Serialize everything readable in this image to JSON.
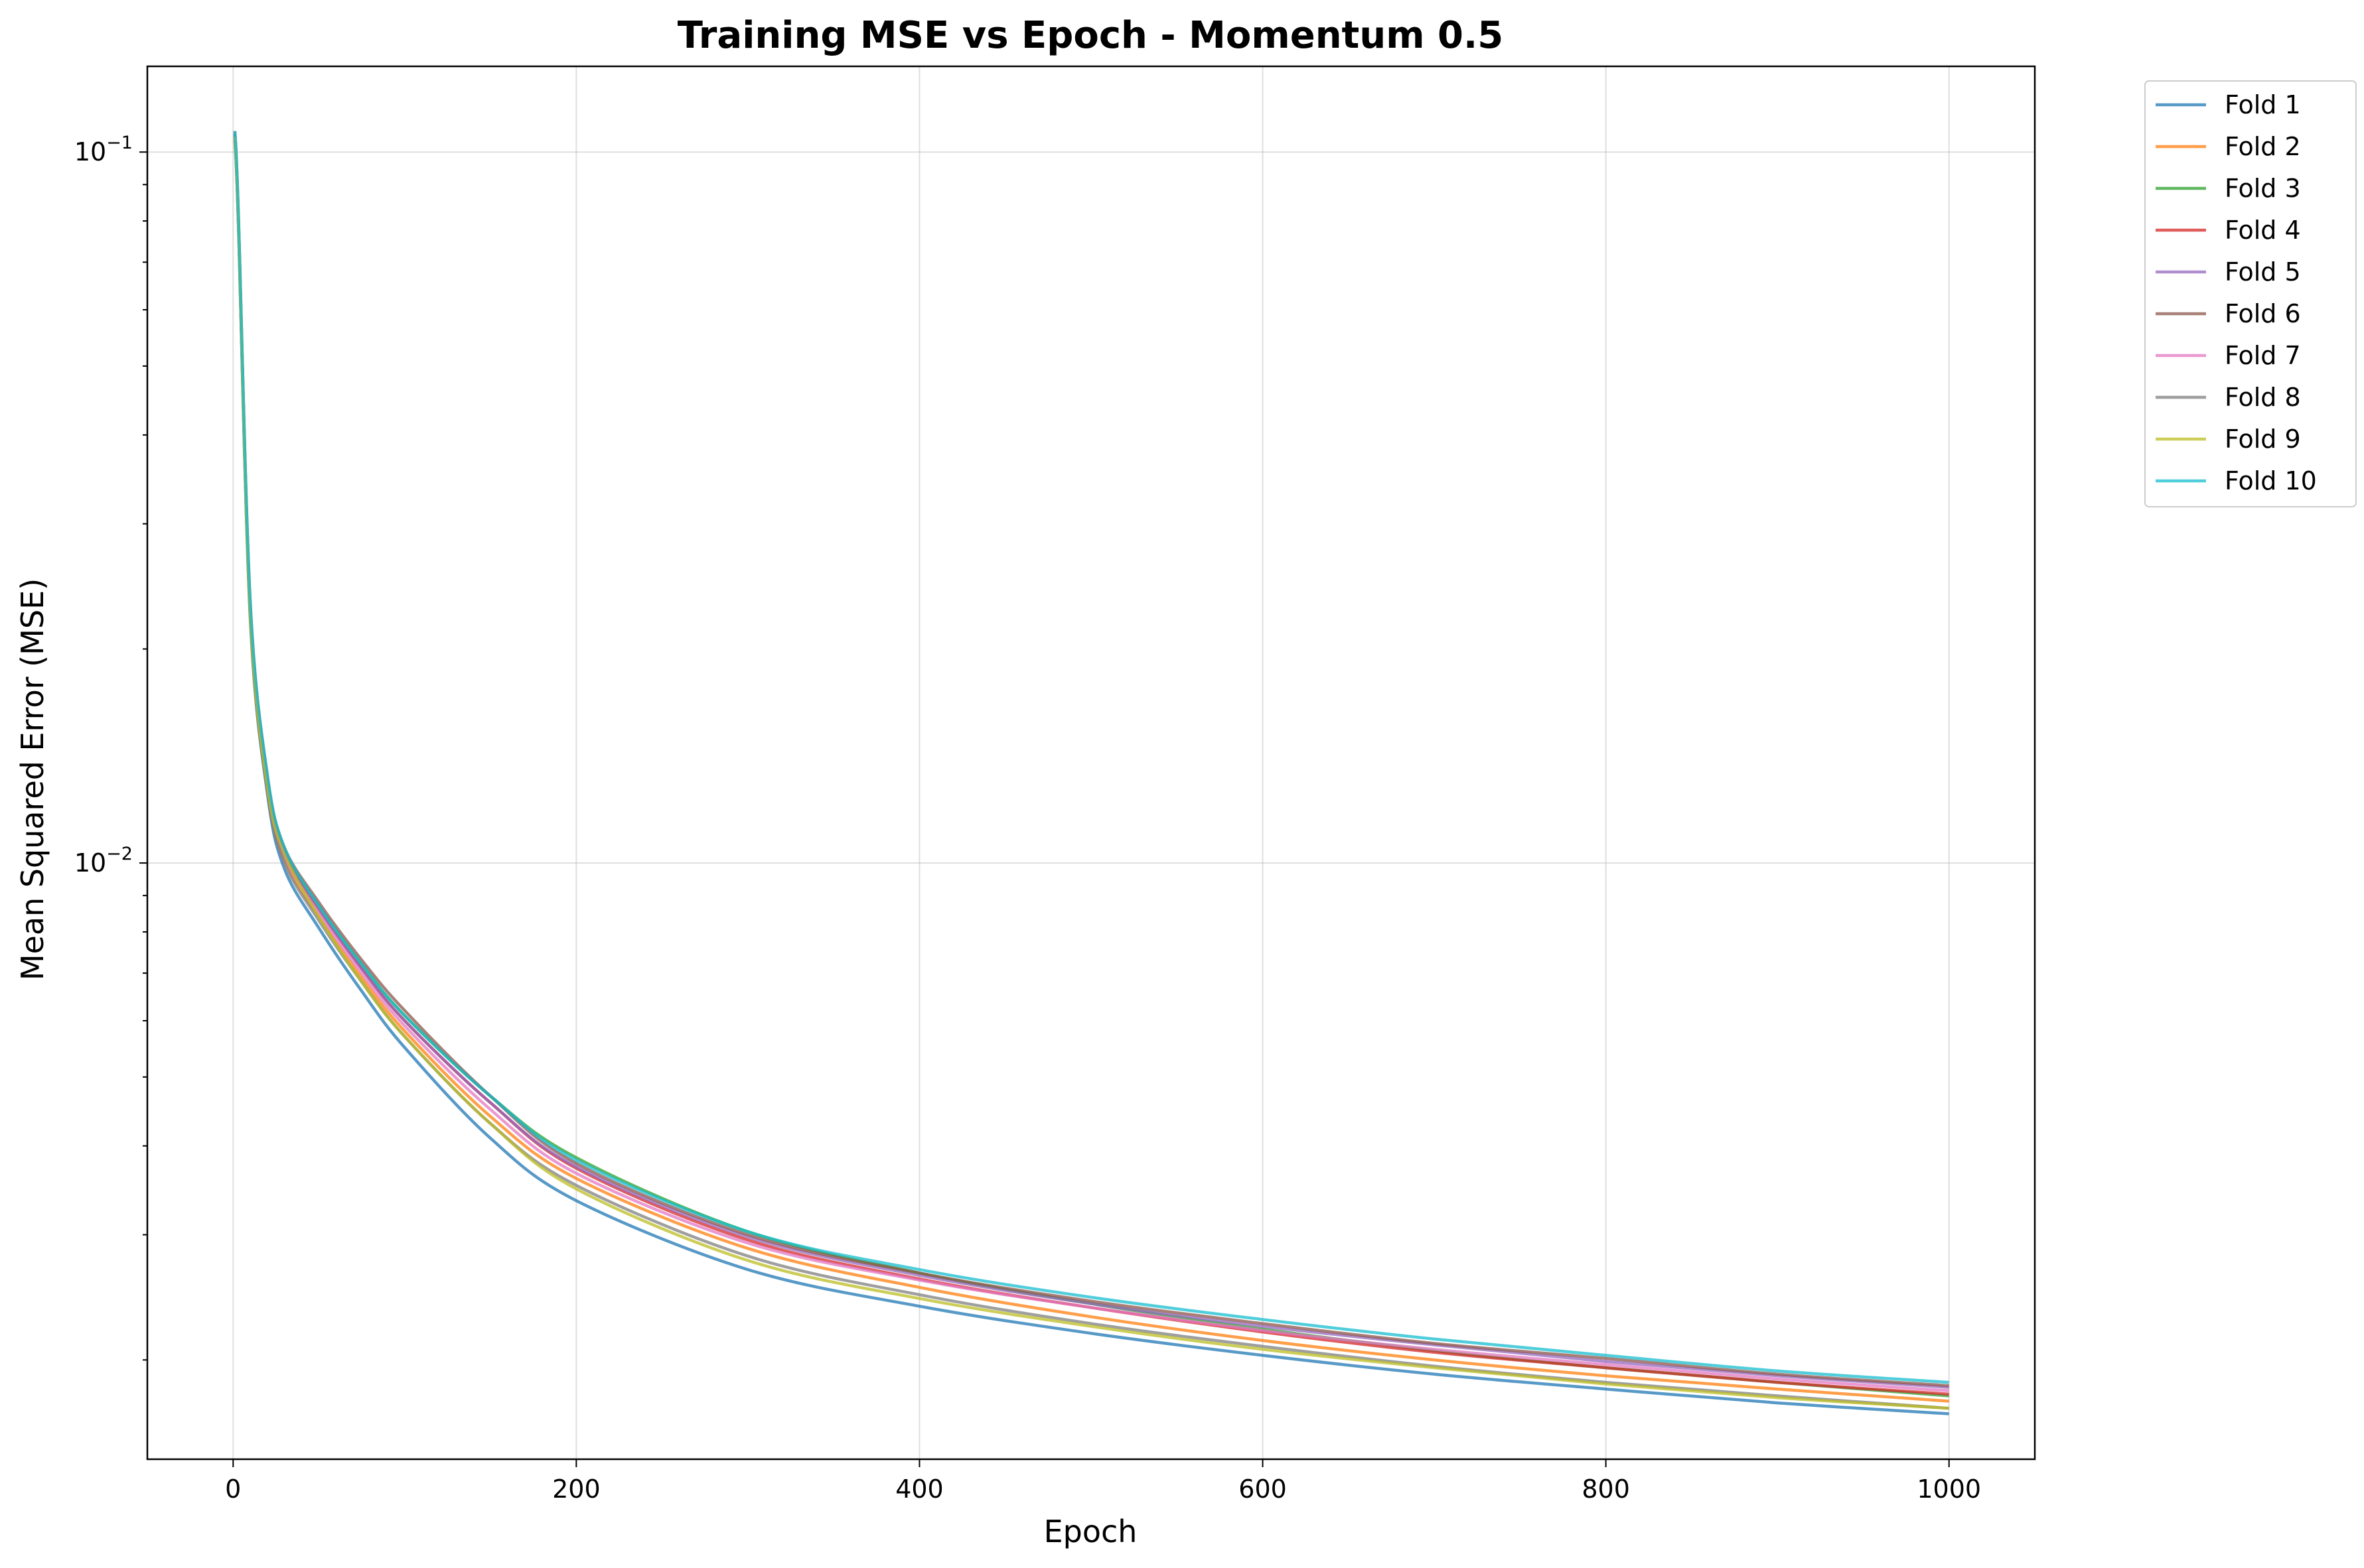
{
  "chart_data": {
    "type": "line",
    "title": "Training MSE vs Epoch - Momentum 0.5",
    "xlabel": "Epoch",
    "ylabel": "Mean Squared Error (MSE)",
    "xlim": [
      -50,
      1050
    ],
    "ylim": [
      0.00145,
      0.132
    ],
    "y_scale": "log",
    "grid": true,
    "legend_position": "outside-top-right",
    "x_ticks": [
      {
        "value": 0,
        "label": "0"
      },
      {
        "value": 200,
        "label": "200"
      },
      {
        "value": 400,
        "label": "400"
      },
      {
        "value": 600,
        "label": "600"
      },
      {
        "value": 800,
        "label": "800"
      },
      {
        "value": 1000,
        "label": "1000"
      }
    ],
    "y_ticks": [
      {
        "value": 0.1,
        "base": "10",
        "exponent": "−1"
      },
      {
        "value": 0.01,
        "base": "10",
        "exponent": "−2"
      }
    ],
    "x": [
      1,
      3,
      10,
      20,
      30,
      50,
      75,
      100,
      150,
      200,
      300,
      400,
      500,
      600,
      700,
      800,
      900,
      1000
    ],
    "series": [
      {
        "name": "Fold 1",
        "color": "#1f77b4",
        "values": [
          0.104,
          0.08,
          0.022,
          0.0125,
          0.0098,
          0.0081,
          0.0066,
          0.0055,
          0.0041,
          0.00335,
          0.00268,
          0.00238,
          0.00218,
          0.00203,
          0.00191,
          0.00182,
          0.00174,
          0.00168
        ]
      },
      {
        "name": "Fold 2",
        "color": "#ff7f0e",
        "values": [
          0.105,
          0.081,
          0.0225,
          0.0128,
          0.0101,
          0.0084,
          0.0069,
          0.0058,
          0.0044,
          0.0036,
          0.00287,
          0.00253,
          0.0023,
          0.00213,
          0.002,
          0.0019,
          0.00182,
          0.00175
        ]
      },
      {
        "name": "Fold 3",
        "color": "#2ca02c",
        "values": [
          0.106,
          0.082,
          0.023,
          0.013,
          0.0104,
          0.0087,
          0.0072,
          0.0061,
          0.0047,
          0.00385,
          0.00303,
          0.00265,
          0.0024,
          0.00221,
          0.00206,
          0.00195,
          0.00186,
          0.00178
        ]
      },
      {
        "name": "Fold 4",
        "color": "#d62728",
        "values": [
          0.105,
          0.081,
          0.0228,
          0.0129,
          0.0103,
          0.0086,
          0.0071,
          0.006,
          0.0046,
          0.00372,
          0.00295,
          0.0026,
          0.00237,
          0.00219,
          0.00205,
          0.00195,
          0.00186,
          0.00179
        ]
      },
      {
        "name": "Fold 5",
        "color": "#9467bd",
        "values": [
          0.106,
          0.082,
          0.0229,
          0.013,
          0.0103,
          0.0086,
          0.0071,
          0.006,
          0.0046,
          0.00374,
          0.00298,
          0.00263,
          0.0024,
          0.00223,
          0.0021,
          0.00199,
          0.0019,
          0.00183
        ]
      },
      {
        "name": "Fold 6",
        "color": "#8c564b",
        "values": [
          0.107,
          0.083,
          0.0232,
          0.0132,
          0.0105,
          0.0088,
          0.0073,
          0.0062,
          0.0047,
          0.00378,
          0.003,
          0.00265,
          0.00242,
          0.00225,
          0.00211,
          0.00201,
          0.00191,
          0.00184
        ]
      },
      {
        "name": "Fold 7",
        "color": "#e377c2",
        "values": [
          0.105,
          0.081,
          0.0226,
          0.0128,
          0.0102,
          0.0085,
          0.007,
          0.0059,
          0.0045,
          0.00366,
          0.00292,
          0.00259,
          0.00237,
          0.0022,
          0.00207,
          0.00197,
          0.00188,
          0.00181
        ]
      },
      {
        "name": "Fold 8",
        "color": "#7f7f7f",
        "values": [
          0.104,
          0.08,
          0.0222,
          0.0126,
          0.01,
          0.0083,
          0.0068,
          0.0057,
          0.0043,
          0.00352,
          0.0028,
          0.00247,
          0.00225,
          0.00209,
          0.00196,
          0.00186,
          0.00178,
          0.00171
        ]
      },
      {
        "name": "Fold 9",
        "color": "#bcbd22",
        "values": [
          0.105,
          0.081,
          0.0224,
          0.0128,
          0.0103,
          0.0084,
          0.0068,
          0.0057,
          0.0043,
          0.00348,
          0.00276,
          0.00244,
          0.00223,
          0.00207,
          0.00195,
          0.00185,
          0.00177,
          0.00171
        ]
      },
      {
        "name": "Fold 10",
        "color": "#17becf",
        "values": [
          0.107,
          0.083,
          0.0233,
          0.0133,
          0.0105,
          0.0087,
          0.0072,
          0.0061,
          0.0047,
          0.00382,
          0.00303,
          0.00268,
          0.00245,
          0.00228,
          0.00214,
          0.00203,
          0.00193,
          0.00186
        ]
      }
    ]
  }
}
